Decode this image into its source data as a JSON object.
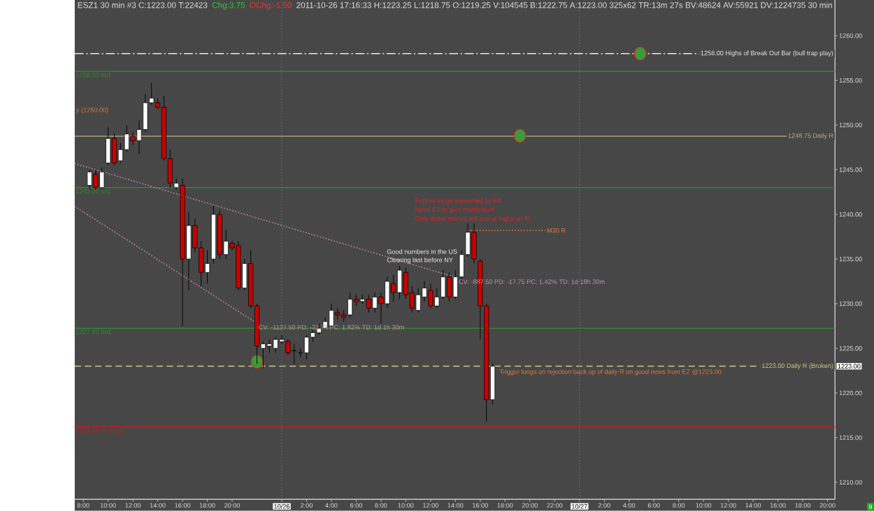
{
  "chart_data": {
    "type": "candlestick",
    "title": "ESZ1 30 min #3 C:1223.00 T:22423",
    "x": [
      "2011-10-25T08:30",
      "2011-10-25T09:00",
      "2011-10-25T09:30",
      "2011-10-25T10:00",
      "2011-10-25T10:30",
      "2011-10-25T11:00",
      "2011-10-25T11:30",
      "2011-10-25T12:00",
      "2011-10-25T12:30",
      "2011-10-25T13:00",
      "2011-10-25T13:30",
      "2011-10-25T14:00",
      "2011-10-25T14:30",
      "2011-10-25T15:00",
      "2011-10-25T15:30",
      "2011-10-25T16:00",
      "2011-10-25T16:30",
      "2011-10-25T17:00",
      "2011-10-25T17:30",
      "2011-10-25T18:00",
      "2011-10-25T18:30",
      "2011-10-25T19:00",
      "2011-10-25T19:30",
      "2011-10-25T20:00",
      "2011-10-25T20:30",
      "2011-10-25T21:00",
      "2011-10-25T21:30",
      "2011-10-25T22:00",
      "2011-10-25T22:30",
      "2011-10-25T23:00",
      "2011-10-25T23:30",
      "2011-10-26T00:00",
      "2011-10-26T00:30",
      "2011-10-26T01:00",
      "2011-10-26T01:30",
      "2011-10-26T02:00",
      "2011-10-26T02:30",
      "2011-10-26T03:00",
      "2011-10-26T03:30",
      "2011-10-26T04:00",
      "2011-10-26T04:30",
      "2011-10-26T05:00",
      "2011-10-26T05:30",
      "2011-10-26T06:00",
      "2011-10-26T06:30",
      "2011-10-26T07:00",
      "2011-10-26T07:30",
      "2011-10-26T08:00",
      "2011-10-26T08:30",
      "2011-10-26T09:00",
      "2011-10-26T09:30",
      "2011-10-26T10:00",
      "2011-10-26T10:30",
      "2011-10-26T11:00",
      "2011-10-26T11:30",
      "2011-10-26T12:00",
      "2011-10-26T12:30",
      "2011-10-26T13:00",
      "2011-10-26T13:30",
      "2011-10-26T14:00",
      "2011-10-26T14:30",
      "2011-10-26T15:00",
      "2011-10-26T15:30",
      "2011-10-26T16:00",
      "2011-10-26T16:30",
      "2011-10-26T17:00"
    ],
    "ohlc": [
      [
        1243.25,
        1245.0,
        1242.75,
        1244.75
      ],
      [
        1244.5,
        1245.0,
        1242.75,
        1243.0
      ],
      [
        1243.0,
        1245.25,
        1242.75,
        1244.75
      ],
      [
        1245.75,
        1249.75,
        1245.5,
        1248.5
      ],
      [
        1248.5,
        1249.0,
        1245.5,
        1245.75
      ],
      [
        1246.0,
        1248.0,
        1245.75,
        1247.25
      ],
      [
        1247.25,
        1250.0,
        1247.0,
        1249.0
      ],
      [
        1248.75,
        1249.25,
        1247.75,
        1248.25
      ],
      [
        1248.25,
        1250.5,
        1246.75,
        1249.5
      ],
      [
        1249.5,
        1253.5,
        1249.25,
        1252.5
      ],
      [
        1252.5,
        1254.75,
        1252.25,
        1253.0
      ],
      [
        1252.5,
        1253.0,
        1251.75,
        1252.0
      ],
      [
        1252.0,
        1253.25,
        1246.0,
        1246.25
      ],
      [
        1246.25,
        1247.25,
        1243.0,
        1243.5
      ],
      [
        1243.0,
        1244.0,
        1242.75,
        1243.5
      ],
      [
        1243.25,
        1244.0,
        1227.5,
        1235.0
      ],
      [
        1235.0,
        1240.25,
        1231.5,
        1238.75
      ],
      [
        1238.75,
        1239.5,
        1235.75,
        1236.25
      ],
      [
        1236.25,
        1237.0,
        1232.0,
        1233.5
      ],
      [
        1233.5,
        1236.0,
        1232.25,
        1234.5
      ],
      [
        1235.0,
        1241.0,
        1234.5,
        1240.0
      ],
      [
        1240.0,
        1240.5,
        1235.0,
        1235.5
      ],
      [
        1235.5,
        1238.25,
        1235.0,
        1237.0
      ],
      [
        1236.75,
        1237.0,
        1236.0,
        1236.25
      ],
      [
        1236.5,
        1237.0,
        1231.5,
        1231.75
      ],
      [
        1231.75,
        1235.0,
        1231.5,
        1234.5
      ],
      [
        1234.5,
        1236.0,
        1229.5,
        1229.75
      ],
      [
        1229.75,
        1230.0,
        1223.25,
        1225.25
      ],
      [
        1225.0,
        1225.75,
        1222.75,
        1225.5
      ],
      [
        1225.25,
        1226.0,
        1224.5,
        1225.5
      ],
      [
        1225.0,
        1226.25,
        1224.5,
        1226.0
      ],
      [
        1225.75,
        1226.5,
        1225.5,
        1226.0
      ],
      [
        1225.75,
        1226.0,
        1224.25,
        1224.5
      ],
      [
        1224.75,
        1225.5,
        1223.25,
        1224.75
      ],
      [
        1224.5,
        1225.0,
        1224.0,
        1224.5
      ],
      [
        1224.5,
        1226.5,
        1223.75,
        1226.25
      ],
      [
        1226.25,
        1227.25,
        1225.75,
        1226.75
      ],
      [
        1226.75,
        1227.75,
        1226.5,
        1227.25
      ],
      [
        1227.25,
        1228.5,
        1227.0,
        1228.0
      ],
      [
        1227.5,
        1230.0,
        1227.25,
        1229.25
      ],
      [
        1229.0,
        1229.5,
        1228.25,
        1228.75
      ],
      [
        1228.75,
        1229.25,
        1228.0,
        1228.5
      ],
      [
        1228.75,
        1231.25,
        1228.5,
        1230.5
      ],
      [
        1230.5,
        1231.0,
        1229.75,
        1230.25
      ],
      [
        1230.25,
        1231.0,
        1230.0,
        1230.5
      ],
      [
        1230.5,
        1231.0,
        1229.0,
        1229.5
      ],
      [
        1229.5,
        1231.25,
        1229.0,
        1230.75
      ],
      [
        1230.75,
        1231.25,
        1227.75,
        1230.0
      ],
      [
        1230.0,
        1233.0,
        1229.5,
        1232.5
      ],
      [
        1232.25,
        1233.25,
        1230.25,
        1231.25
      ],
      [
        1231.25,
        1234.25,
        1230.5,
        1233.75
      ],
      [
        1233.5,
        1234.0,
        1230.5,
        1231.0
      ],
      [
        1231.25,
        1232.0,
        1229.0,
        1229.5
      ],
      [
        1229.25,
        1231.75,
        1229.0,
        1231.0
      ],
      [
        1230.75,
        1232.5,
        1230.25,
        1231.75
      ],
      [
        1231.5,
        1232.25,
        1229.5,
        1229.75
      ],
      [
        1229.75,
        1231.75,
        1229.5,
        1230.75
      ],
      [
        1230.75,
        1233.75,
        1230.5,
        1233.0
      ],
      [
        1233.0,
        1233.5,
        1230.25,
        1230.75
      ],
      [
        1230.75,
        1233.75,
        1230.5,
        1233.0
      ],
      [
        1233.0,
        1236.0,
        1232.5,
        1235.5
      ],
      [
        1235.5,
        1239.0,
        1235.25,
        1238.0
      ],
      [
        1238.0,
        1239.0,
        1234.5,
        1235.0
      ],
      [
        1234.75,
        1235.0,
        1226.0,
        1229.75
      ],
      [
        1229.75,
        1230.0,
        1216.75,
        1219.25
      ],
      [
        1219.25,
        1223.25,
        1218.75,
        1223.0
      ]
    ],
    "series": [
      {
        "type": "line",
        "name": "CV: -887.50  PD: -17.75  PC: 1.42%  TD: 1d 18h 30m",
        "color": "#c98fb0",
        "line_style": "dotted",
        "x": [
          "2011-10-25T07:18",
          "2011-10-26T14:08"
        ],
        "values": [
          1245.7,
          1232.9
        ]
      },
      {
        "type": "line",
        "name": "CV: -1137.50  PD: -22.75  PC: 1.82%  TD: 1d 1h 30m",
        "color": "#c98fb0",
        "line_style": "dotted",
        "x": [
          "2011-10-25T07:18",
          "2011-10-25T22:00"
        ],
        "values": [
          1240.9,
          1227.8
        ]
      },
      {
        "type": "line",
        "name": "M30 R",
        "color": "#e0793a",
        "line_style": "dotted",
        "x": [
          "2011-10-26T15:00",
          "2011-10-26T21:15"
        ],
        "values": [
          1238.2,
          1238.2
        ]
      },
      {
        "type": "scatter",
        "color": "#3c9a3c",
        "marker": "circle",
        "x": [
          "2011-10-25T22:00",
          "2011-10-26T19:12",
          "2011-10-27T04:54"
        ],
        "values": [
          1223.5,
          1248.8,
          1258.0
        ]
      }
    ],
    "xlim": [
      "2011-10-25T07:18",
      "2011-10-27T20:36"
    ],
    "xticks": [
      {
        "value": "2011-10-25T08:00",
        "label": "8:00"
      },
      {
        "value": "2011-10-25T10:00",
        "label": "10:00"
      },
      {
        "value": "2011-10-25T12:00",
        "label": "12:00"
      },
      {
        "value": "2011-10-25T14:00",
        "label": "14:00"
      },
      {
        "value": "2011-10-25T16:00",
        "label": "16:00"
      },
      {
        "value": "2011-10-25T18:00",
        "label": "18:00"
      },
      {
        "value": "2011-10-25T20:00",
        "label": "20:00"
      },
      {
        "value": "2011-10-26T00:00",
        "label": "10/26"
      },
      {
        "value": "2011-10-26T02:00",
        "label": "2:00"
      },
      {
        "value": "2011-10-26T04:00",
        "label": "4:00"
      },
      {
        "value": "2011-10-26T06:00",
        "label": "6:00"
      },
      {
        "value": "2011-10-26T08:00",
        "label": "8:00"
      },
      {
        "value": "2011-10-26T10:00",
        "label": "10:00"
      },
      {
        "value": "2011-10-26T12:00",
        "label": "12:00"
      },
      {
        "value": "2011-10-26T14:00",
        "label": "14:00"
      },
      {
        "value": "2011-10-26T16:00",
        "label": "16:00"
      },
      {
        "value": "2011-10-26T18:00",
        "label": "18:00"
      },
      {
        "value": "2011-10-26T20:00",
        "label": "20:00"
      },
      {
        "value": "2011-10-26T22:00",
        "label": "22:00"
      },
      {
        "value": "2011-10-27T00:00",
        "label": "10/27"
      },
      {
        "value": "2011-10-27T02:00",
        "label": "2:00"
      },
      {
        "value": "2011-10-27T04:00",
        "label": "4:00"
      },
      {
        "value": "2011-10-27T06:00",
        "label": "6:00"
      },
      {
        "value": "2011-10-27T08:00",
        "label": "8:00"
      },
      {
        "value": "2011-10-27T10:00",
        "label": "10:00"
      },
      {
        "value": "2011-10-27T12:00",
        "label": "12:00"
      },
      {
        "value": "2011-10-27T14:00",
        "label": "14:00"
      },
      {
        "value": "2011-10-27T16:00",
        "label": "16:00"
      },
      {
        "value": "2011-10-27T18:00",
        "label": "18:00"
      },
      {
        "value": "2011-10-27T20:00",
        "label": "20:00"
      }
    ],
    "ylim": [
      1208.1,
      1264.0
    ],
    "yticks": [
      {
        "value": 1210,
        "label": "1210.00"
      },
      {
        "value": 1215,
        "label": "1215.00"
      },
      {
        "value": 1220,
        "label": "1220.00"
      },
      {
        "value": 1225,
        "label": "1225.00"
      },
      {
        "value": 1230,
        "label": "1230.00"
      },
      {
        "value": 1235,
        "label": "1235.00"
      },
      {
        "value": 1240,
        "label": "1240.00"
      },
      {
        "value": 1245,
        "label": "1245.00"
      },
      {
        "value": 1250,
        "label": "1250.00"
      },
      {
        "value": 1255,
        "label": "1255.00"
      },
      {
        "value": 1260,
        "label": "1260.00"
      }
    ],
    "ref_lines": [
      {
        "axis": "y",
        "value": 1258,
        "label": "1258.00  Highs of Break Out Bar (bull trap play)",
        "color": "#e8e8e8",
        "line_style": "dashdot"
      },
      {
        "axis": "y",
        "value": 1256,
        "color": "#2f8a2f"
      },
      {
        "axis": "y",
        "value": 1248.75,
        "label": "1248.75  Daily R",
        "color": "#b8b276"
      },
      {
        "axis": "y",
        "value": 1243,
        "color": "#2f8a2f"
      },
      {
        "axis": "y",
        "value": 1227.25,
        "color": "#2f8a2f"
      },
      {
        "axis": "y",
        "value": 1223,
        "label": "1223.00  Daily R (Broken)",
        "color": "#cfc87e",
        "line_style": "dashed"
      },
      {
        "axis": "y",
        "value": 1216.25,
        "color": "#b82222"
      },
      {
        "axis": "x",
        "value": "2011-10-26T00:00",
        "color": "#6e6e6e",
        "line_style": "dotted"
      },
      {
        "axis": "x",
        "value": "2011-10-27T00:00",
        "color": "#6e6e6e",
        "line_style": "dotted"
      }
    ],
    "annotations": [
      "Chg:3.75",
      "OChg:-1.50",
      "2011-10-26 17:16:33 H:1223.25 L:1218.75 O:1219.25 V:104545 B:1222.75 A:1223.00 325x62 TR:13m 27s BV:48624 AV:55921 DV:1224735 30 min",
      "9",
      "1223.00",
      {
        "text": "1256.00  Im1",
        "x": "2011-10-25T07:18",
        "y": 1256
      },
      {
        "text": "1243.00  Im1",
        "x": "2011-10-25T07:18",
        "y": 1243
      },
      {
        "text": "1227.25  Im1",
        "x": "2011-10-25T07:18",
        "y": 1227.25
      },
      {
        "text": "1216.25  mi stop",
        "x": "2011-10-25T07:18",
        "y": 1216.25
      },
      "y (1250.00)",
      "Good numbers in the US",
      "Clearing last before NY",
      "Further longs supported by FA",
      "Need EZ to give momentum",
      "Only dumb money will buy at highs on R",
      "Trigger longs on rejection back up of daily R on good news from EZ @1223.00"
    ]
  }
}
